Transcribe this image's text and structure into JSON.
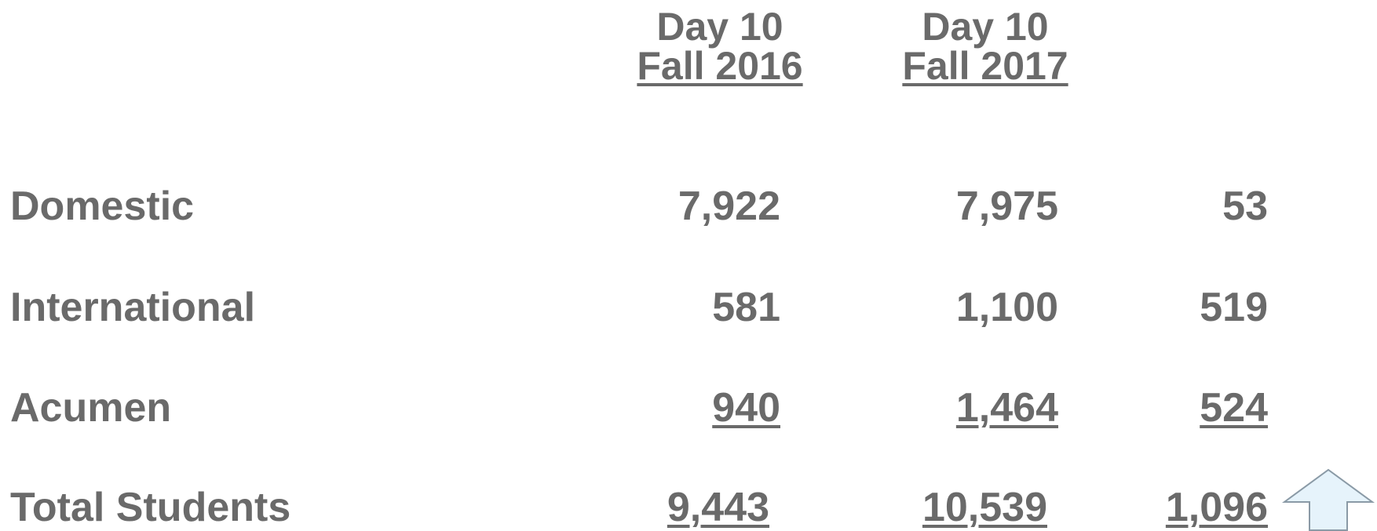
{
  "header": {
    "columns": [
      {
        "line1": "Day 10",
        "line2": "Fall 2016"
      },
      {
        "line1": "Day 10",
        "line2": "Fall 2017"
      }
    ]
  },
  "table": {
    "rows": [
      {
        "label": "Domestic",
        "values": [
          "7,922",
          "7,975",
          "53"
        ]
      },
      {
        "label": "International",
        "values": [
          "581",
          "1,100",
          "519"
        ]
      },
      {
        "label": "Acumen",
        "values": [
          "940",
          "1,464",
          "524"
        ]
      },
      {
        "label": "Total Students",
        "values": [
          "9,443",
          "10,539",
          "1,096"
        ]
      }
    ]
  }
}
